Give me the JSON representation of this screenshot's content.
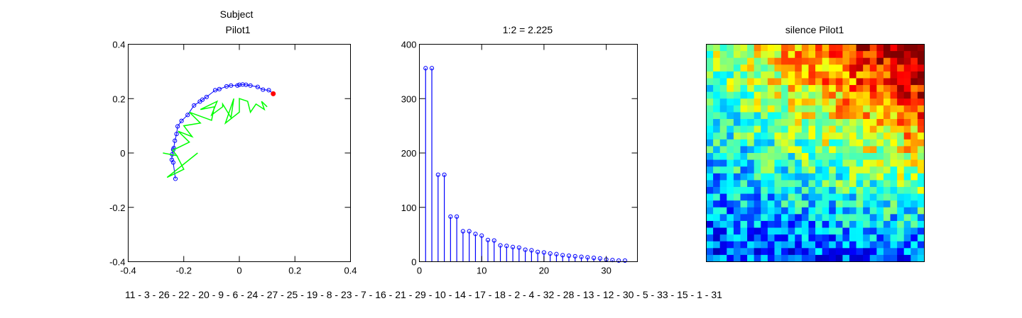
{
  "chart_data": [
    {
      "type": "scatter",
      "title": [
        "Subject",
        "Pilot1"
      ],
      "xlim": [
        -0.4,
        0.4
      ],
      "ylim": [
        -0.4,
        0.4
      ],
      "xticks": [
        -0.4,
        -0.2,
        0,
        0.2,
        0.4
      ],
      "xtick_labels": [
        "-0.4",
        "-0.2",
        "0",
        "0.2",
        "0.4"
      ],
      "yticks": [
        -0.4,
        -0.2,
        0,
        0.2,
        0.4
      ],
      "ytick_labels": [
        "-0.4",
        "-0.2",
        "0",
        "0.2",
        "0.4"
      ],
      "grid": false,
      "series": [
        {
          "kind": "line-with-markers",
          "color": "#0000ff",
          "x": [
            -0.23,
            -0.238,
            -0.243,
            -0.242,
            -0.238,
            -0.236,
            -0.232,
            -0.226,
            -0.222,
            -0.208,
            -0.186,
            -0.163,
            -0.142,
            -0.133,
            -0.118,
            -0.087,
            -0.072,
            -0.046,
            -0.03,
            -0.007,
            0.0,
            0.012,
            0.024,
            0.04,
            0.066,
            0.085,
            0.106,
            0.122
          ],
          "y": [
            -0.095,
            -0.035,
            -0.025,
            -0.005,
            0.012,
            0.018,
            0.045,
            0.07,
            0.098,
            0.118,
            0.14,
            0.175,
            0.189,
            0.196,
            0.206,
            0.231,
            0.235,
            0.245,
            0.248,
            0.248,
            0.251,
            0.252,
            0.251,
            0.248,
            0.243,
            0.233,
            0.231,
            0.218
          ]
        },
        {
          "kind": "endpoint",
          "color": "#ff0000",
          "x": [
            0.122
          ],
          "y": [
            0.218
          ]
        },
        {
          "kind": "line",
          "color": "#00ff00",
          "x": [
            -0.275,
            -0.225,
            -0.24,
            -0.18,
            -0.22,
            -0.17,
            -0.2,
            -0.14,
            -0.18,
            -0.1,
            -0.09,
            -0.14,
            -0.08,
            -0.1,
            -0.06,
            -0.06,
            -0.03,
            -0.02,
            -0.05,
            0.0,
            0.0,
            0.03,
            0.04,
            0.06,
            0.09,
            0.08,
            0.1
          ],
          "y": [
            0.0,
            -0.01,
            0.01,
            0.04,
            0.08,
            0.06,
            0.1,
            0.11,
            0.15,
            0.12,
            0.17,
            0.16,
            0.19,
            0.14,
            0.17,
            0.18,
            0.13,
            0.2,
            0.11,
            0.15,
            0.2,
            0.19,
            0.15,
            0.18,
            0.16,
            0.19,
            0.17
          ]
        },
        {
          "kind": "line",
          "color": "#00ff00",
          "x": [
            -0.225,
            -0.2,
            -0.26,
            -0.15
          ],
          "y": [
            -0.01,
            -0.06,
            -0.09,
            0.0
          ]
        }
      ]
    },
    {
      "type": "stem",
      "title": "1:2 = 2.225",
      "xlim": [
        0,
        35
      ],
      "ylim": [
        0,
        400
      ],
      "xticks": [
        0,
        10,
        20,
        30
      ],
      "xtick_labels": [
        "0",
        "10",
        "20",
        "30"
      ],
      "yticks": [
        0,
        100,
        200,
        300,
        400
      ],
      "ytick_labels": [
        "0",
        "100",
        "200",
        "300",
        "400"
      ],
      "grid": false,
      "color": "#0000ff",
      "x": [
        1,
        2,
        3,
        4,
        5,
        6,
        7,
        8,
        9,
        10,
        11,
        12,
        13,
        14,
        15,
        16,
        17,
        18,
        19,
        20,
        21,
        22,
        23,
        24,
        25,
        26,
        27,
        28,
        29,
        30,
        31,
        32,
        33
      ],
      "values": [
        356,
        356,
        160,
        160,
        83,
        83,
        56,
        56,
        51,
        48,
        40,
        39,
        30,
        29,
        27,
        26,
        22,
        21,
        18,
        17,
        15,
        14,
        12,
        11,
        10,
        9,
        8,
        7,
        6,
        4,
        3,
        2,
        2
      ]
    },
    {
      "type": "heatmap",
      "title": "silence Pilot1",
      "rows": 32,
      "cols": 32,
      "colormap": "jet",
      "color_range": [
        0,
        1
      ]
    }
  ],
  "caption": {
    "ordering": "11 - 3 - 26 - 22 - 20 - 9 - 6 - 24 - 27 - 25 - 19 - 8 - 23 - 7 - 16 - 21 - 29 - 10 - 14 - 17 - 18 - 2 - 4 - 32 - 28 - 13 - 12 - 30 - 5 - 33 - 15 - 1 - 31"
  }
}
